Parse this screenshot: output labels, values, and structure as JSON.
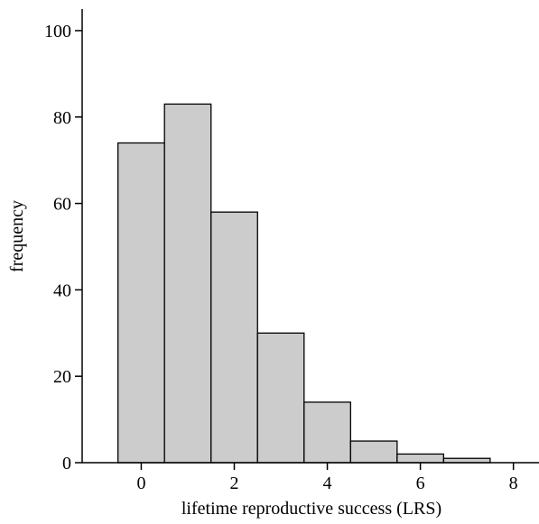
{
  "chart_data": {
    "type": "bar",
    "title": "",
    "xlabel": "lifetime reproductive success (LRS)",
    "ylabel": "frequency",
    "bins": [
      {
        "x": 0,
        "value": 74
      },
      {
        "x": 1,
        "value": 83
      },
      {
        "x": 2,
        "value": 58
      },
      {
        "x": 3,
        "value": 30
      },
      {
        "x": 4,
        "value": 14
      },
      {
        "x": 5,
        "value": 5
      },
      {
        "x": 6,
        "value": 2
      },
      {
        "x": 7,
        "value": 1
      }
    ],
    "bin_width": 1,
    "xlim": [
      -1.27,
      8.55
    ],
    "ylim": [
      0,
      105
    ],
    "x_ticks": [
      0,
      2,
      4,
      6,
      8
    ],
    "y_ticks": [
      0,
      20,
      40,
      60,
      80,
      100
    ],
    "grid": false,
    "legend": "none",
    "bar_fill": "#cccccc",
    "bar_stroke": "#000000"
  }
}
